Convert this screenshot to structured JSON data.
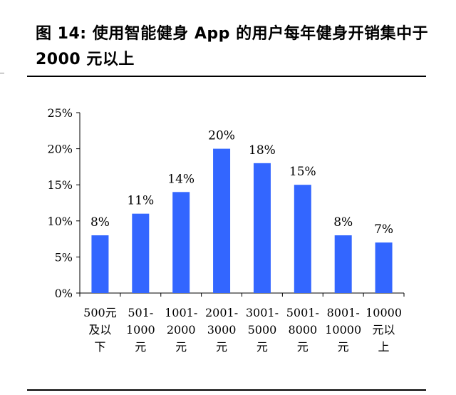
{
  "figure": {
    "title": "图 14: 使用智能健身 App 的用户每年健身开销集中于 2000 元以上"
  },
  "chart_data": {
    "type": "bar",
    "categories": [
      [
        "500元",
        "及以",
        "下"
      ],
      [
        "501-",
        "1000",
        "元"
      ],
      [
        "1001-",
        "2000",
        "元"
      ],
      [
        "2001-",
        "3000",
        "元"
      ],
      [
        "3001-",
        "5000",
        "元"
      ],
      [
        "5001-",
        "8000",
        "元"
      ],
      [
        "8001-",
        "10000",
        "元"
      ],
      [
        "10000",
        "元以",
        "上"
      ]
    ],
    "values": [
      8,
      11,
      14,
      20,
      18,
      15,
      8,
      7
    ],
    "data_labels": [
      "8%",
      "11%",
      "14%",
      "20%",
      "18%",
      "15%",
      "8%",
      "7%"
    ],
    "ylim": [
      0,
      25
    ],
    "yticks": [
      0,
      5,
      10,
      15,
      20,
      25
    ],
    "ytick_labels": [
      "0%",
      "5%",
      "10%",
      "15%",
      "20%",
      "25%"
    ],
    "xlabel": "",
    "ylabel": "",
    "grid": false,
    "bar_color": "#3366ff"
  }
}
